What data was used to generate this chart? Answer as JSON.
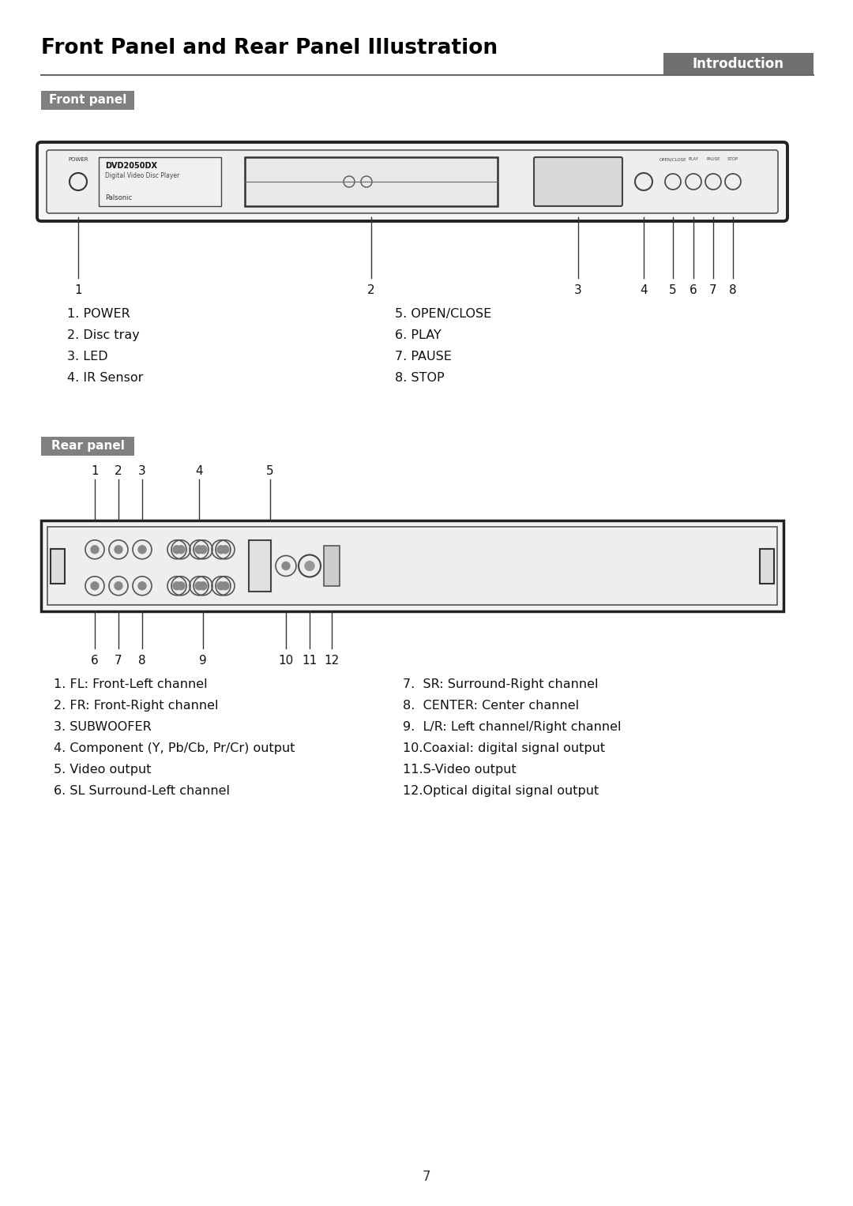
{
  "title": "Front Panel and Rear Panel Illustration",
  "intro_label": "Introduction",
  "front_panel_label": "Front panel",
  "rear_panel_label": "Rear panel",
  "front_items_left": [
    "1. POWER",
    "2. Disc tray",
    "3. LED",
    "4. IR Sensor"
  ],
  "front_items_right": [
    "5. OPEN/CLOSE",
    "6. PLAY",
    "7. PAUSE",
    "8. STOP"
  ],
  "rear_items_left": [
    "1. FL: Front-Left channel",
    "2. FR: Front-Right channel",
    "3. SUBWOOFER",
    "4. Component (Y, Pb/Cb, Pr/Cr) output",
    "5. Video output",
    "6. SL Surround-Left channel"
  ],
  "rear_items_right": [
    "7.  SR: Surround-Right channel",
    "8.  CENTER: Center channel",
    "9.  L/R: Left channel/Right channel",
    "10.Coaxial: digital signal output",
    "11.S-Video output",
    "12.Optical digital signal output"
  ],
  "page_number": "7",
  "bg_color": "#ffffff",
  "title_color": "#000000",
  "intro_bg": "#707070",
  "intro_text_color": "#ffffff",
  "panel_label_bg": "#808080",
  "panel_label_text_color": "#ffffff",
  "body_text_color": "#111111"
}
